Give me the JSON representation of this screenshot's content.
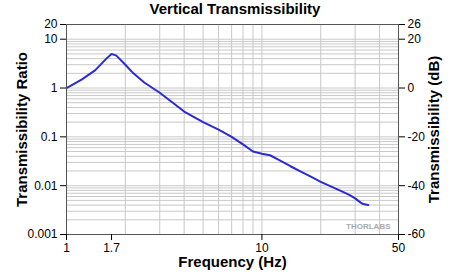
{
  "chart_data": {
    "type": "line",
    "title": "Vertical Transmissibility",
    "xlabel": "Frequency (Hz)",
    "ylabel": "Transmissibility Ratio",
    "y2label": "Transmissibility (dB)",
    "x": [
      1,
      1.2,
      1.4,
      1.6,
      1.7,
      1.8,
      2.0,
      2.2,
      2.5,
      3,
      3.5,
      4,
      5,
      6,
      7,
      8,
      9,
      10,
      11,
      12,
      14,
      16,
      18,
      20,
      25,
      28,
      30,
      32,
      33,
      35
    ],
    "values": [
      1.0,
      1.5,
      2.3,
      4.0,
      5.0,
      4.6,
      3.0,
      2.0,
      1.3,
      0.8,
      0.5,
      0.33,
      0.2,
      0.14,
      0.1,
      0.07,
      0.05,
      0.045,
      0.042,
      0.035,
      0.025,
      0.019,
      0.015,
      0.012,
      0.008,
      0.0065,
      0.0055,
      0.0045,
      0.0042,
      0.004
    ],
    "color": "#2b2bd0",
    "xlim": [
      1,
      50
    ],
    "xticks": [
      1,
      1.7,
      10,
      50
    ],
    "ylim": [
      0.001,
      20
    ],
    "yticks": [
      0.001,
      0.01,
      0.1,
      1,
      10,
      20
    ],
    "y2lim": [
      -60,
      26
    ],
    "y2ticks": [
      -60,
      -40,
      -20,
      0,
      20,
      26
    ],
    "annotations": [
      "THORLABS"
    ],
    "log": true,
    "grid": true
  }
}
